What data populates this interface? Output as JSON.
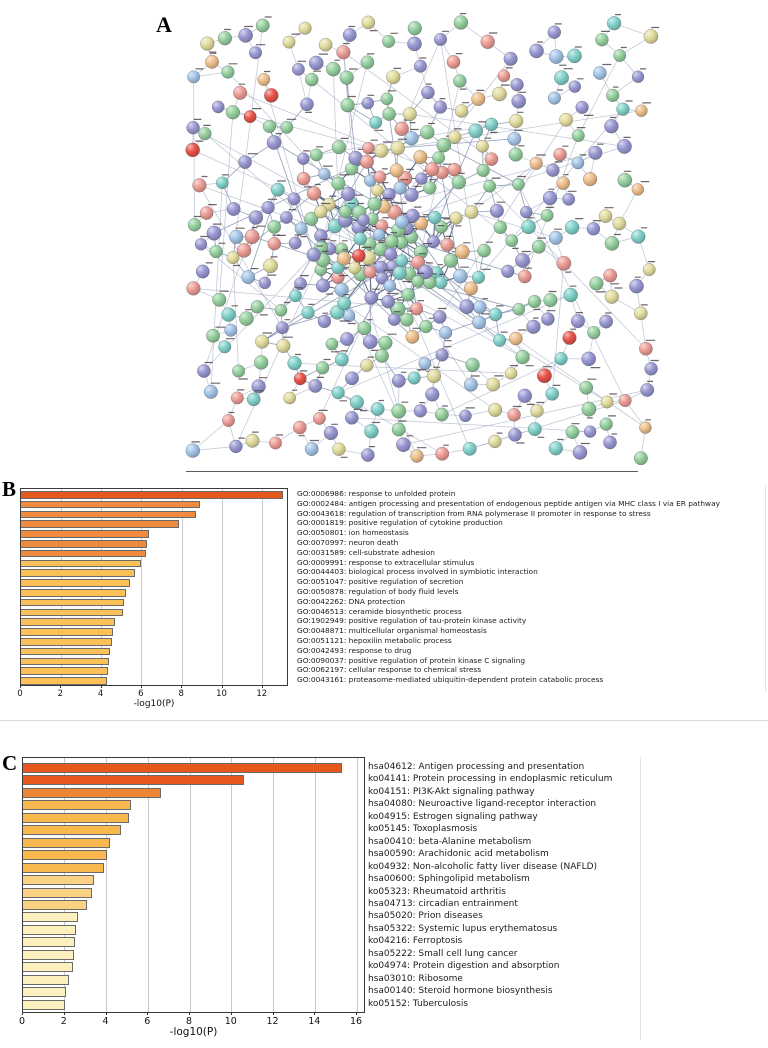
{
  "figure": {
    "panels": [
      {
        "label": "A",
        "kind": "protein-protein interaction network"
      },
      {
        "label": "B",
        "kind": "GO biological process enrichment bar chart"
      },
      {
        "label": "C",
        "kind": "KEGG pathway enrichment bar chart"
      }
    ]
  },
  "network": {
    "seed": 20240917,
    "node_count_center": 105,
    "node_count_mid": 115,
    "node_count_outer": 165,
    "palette": [
      "#97d1a0",
      "#9a9ad4",
      "#ed9e96",
      "#e3dd9e",
      "#82d2cb",
      "#a5c6e8",
      "#eec08c",
      "#e8544a"
    ],
    "palette_weights": [
      0.26,
      0.24,
      0.13,
      0.1,
      0.11,
      0.08,
      0.06,
      0.02
    ],
    "edge_color_hub": "#2c3d63",
    "edge_color_mid": "#6f7fa3",
    "edge_color_outer": "#9aa5bd",
    "label_mark_color": "#4a3f45"
  },
  "chart_data": [
    {
      "type": "bar",
      "panel": "B",
      "orientation": "horizontal",
      "xlabel": "-log10(P)",
      "xlim": [
        0,
        13.3
      ],
      "xticks": [
        0,
        2,
        4,
        6,
        8,
        10,
        12
      ],
      "grid": true,
      "legend_position": "none",
      "categories": [
        "GO:0006986: response to unfolded protein",
        "GO:0002484: antigen processing and presentation of endogenous peptide antigen via MHC class I via ER pathway",
        "GO:0043618: regulation of transcription from RNA polymerase II promoter in response to stress",
        "GO:0001819: positive regulation of cytokine production",
        "GO:0050801: ion homeostasis",
        "GO:0070997: neuron death",
        "GO:0031589: cell-substrate adhesion",
        "GO:0009991: response to extracellular stimulus",
        "GO:0044403: biological process involved in symbiotic interaction",
        "GO:0051047: positive regulation of secretion",
        "GO:0050878: regulation of body fluid levels",
        "GO:0042262: DNA protection",
        "GO:0046513: ceramide biosynthetic process",
        "GO:1902949: positive regulation of tau-protein kinase activity",
        "GO:0048871: multicellular organismal homeostasis",
        "GO:0051121: hepoxilin metabolic process",
        "GO:0042493: response to drug",
        "GO:0090037: positive regulation of protein kinase C signaling",
        "GO:0062197: cellular response to chemical stress",
        "GO:0043161: proteasome-mediated ubiquitin-dependent protein catabolic process"
      ],
      "values": [
        13.0,
        8.9,
        8.7,
        7.85,
        6.35,
        6.25,
        6.2,
        5.95,
        5.65,
        5.4,
        5.2,
        5.1,
        5.05,
        4.65,
        4.55,
        4.5,
        4.4,
        4.35,
        4.3,
        4.25
      ],
      "bar_colors": [
        "#e4581d",
        "#f08a3c",
        "#f08a3c",
        "#f08a3c",
        "#f08a3c",
        "#f08a3c",
        "#f08a3c",
        "#fbc057",
        "#fbc057",
        "#fbc057",
        "#fbc057",
        "#fbc057",
        "#fbc057",
        "#fbc057",
        "#fbc057",
        "#fbc057",
        "#fbc057",
        "#fbc057",
        "#fbc057",
        "#fbc057"
      ]
    },
    {
      "type": "bar",
      "panel": "C",
      "orientation": "horizontal",
      "xlabel": "-log10(P)",
      "xlim": [
        0,
        16.4
      ],
      "xticks": [
        0,
        2,
        4,
        6,
        8,
        10,
        12,
        14,
        16
      ],
      "grid": true,
      "legend_position": "none",
      "categories": [
        "hsa04612: Antigen processing and presentation",
        "ko04141: Protein processing in endoplasmic reticulum",
        "ko04151: PI3K-Akt signaling pathway",
        "hsa04080: Neuroactive ligand-receptor interaction",
        "ko04915: Estrogen signaling pathway",
        "ko05145: Toxoplasmosis",
        "hsa00410: beta-Alanine metabolism",
        "hsa00590: Arachidonic acid metabolism",
        "ko04932: Non-alcoholic fatty liver disease (NAFLD)",
        "hsa00600: Sphingolipid metabolism",
        "ko05323: Rheumatoid arthritis",
        "hsa04713: circadian entrainment",
        "hsa05020: Prion diseases",
        "hsa05322: Systemic lupus erythematosus",
        "ko04216: Ferroptosis",
        "hsa05222: Small cell lung cancer",
        "ko04974: Protein digestion and absorption",
        "hsa03010: Ribosome",
        "hsa00140: Steroid hormone biosynthesis",
        "ko05152: Tuberculosis"
      ],
      "values": [
        15.3,
        10.6,
        6.6,
        5.15,
        5.1,
        4.7,
        4.15,
        4.0,
        3.9,
        3.4,
        3.3,
        3.05,
        2.65,
        2.55,
        2.5,
        2.45,
        2.4,
        2.2,
        2.05,
        2.0
      ],
      "bar_colors": [
        "#e6581b",
        "#e6581b",
        "#ef8636",
        "#f9b84e",
        "#f9b84e",
        "#f9b84e",
        "#f9b84e",
        "#f9b84e",
        "#f9b84e",
        "#fbd283",
        "#fbd283",
        "#fbd283",
        "#fdf0bf",
        "#fdf0bf",
        "#fdf0bf",
        "#fdf0bf",
        "#fdf0bf",
        "#fdf0bf",
        "#fdf0bf",
        "#fdf0bf"
      ]
    }
  ]
}
